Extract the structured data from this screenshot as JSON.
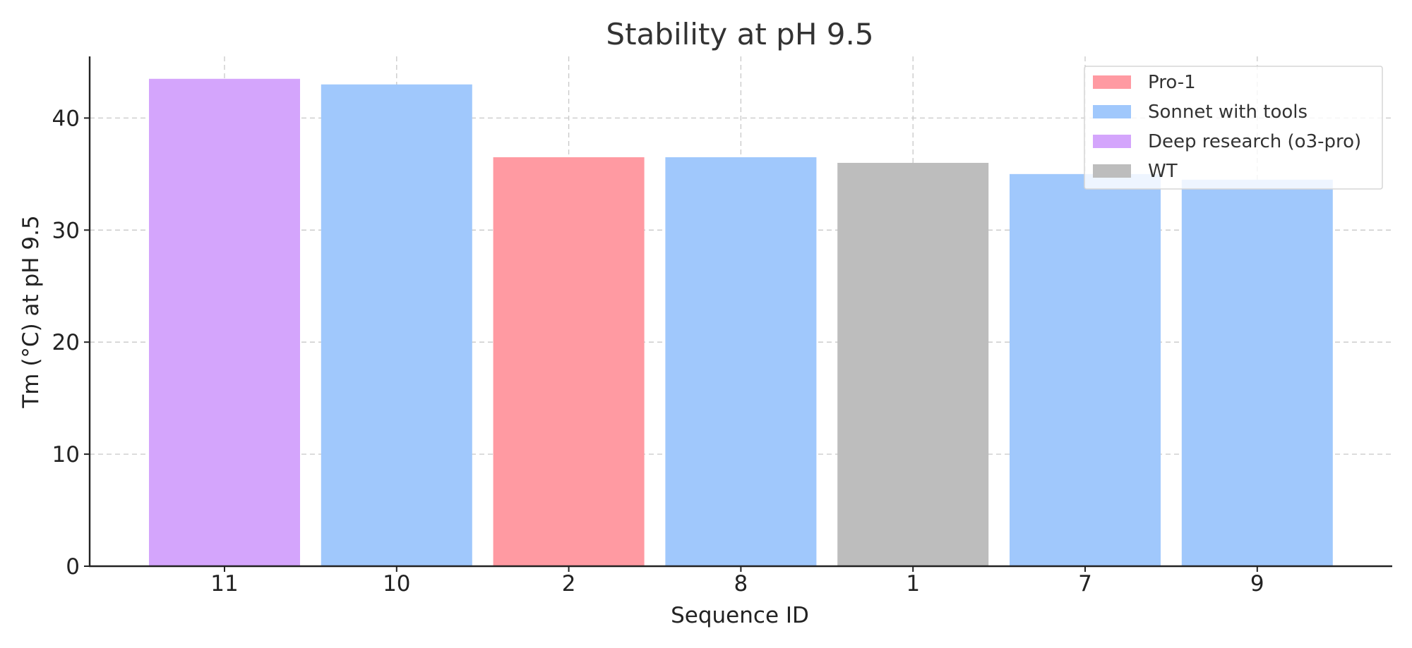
{
  "chart_data": {
    "type": "bar",
    "title": "Stability at pH 9.5",
    "xlabel": "Sequence ID",
    "ylabel": "Tm (°C) at pH 9.5",
    "ylim": [
      0,
      45.5
    ],
    "yticks": [
      0,
      10,
      20,
      30,
      40
    ],
    "grid": true,
    "legend_position": "top-right",
    "categories": [
      "11",
      "10",
      "2",
      "8",
      "1",
      "7",
      "9"
    ],
    "values": [
      43.5,
      43.0,
      36.5,
      36.5,
      36.0,
      35.0,
      34.5
    ],
    "groups": [
      "Deep research (o3-pro)",
      "Sonnet with tools",
      "Pro-1",
      "Sonnet with tools",
      "WT",
      "Sonnet with tools",
      "Sonnet with tools"
    ],
    "legend": [
      {
        "label": "Pro-1",
        "color": "#ff9aa2"
      },
      {
        "label": "Sonnet with tools",
        "color": "#a0c8fc"
      },
      {
        "label": "Deep research (o3-pro)",
        "color": "#d4a5fc"
      },
      {
        "label": "WT",
        "color": "#bdbdbd"
      }
    ]
  }
}
